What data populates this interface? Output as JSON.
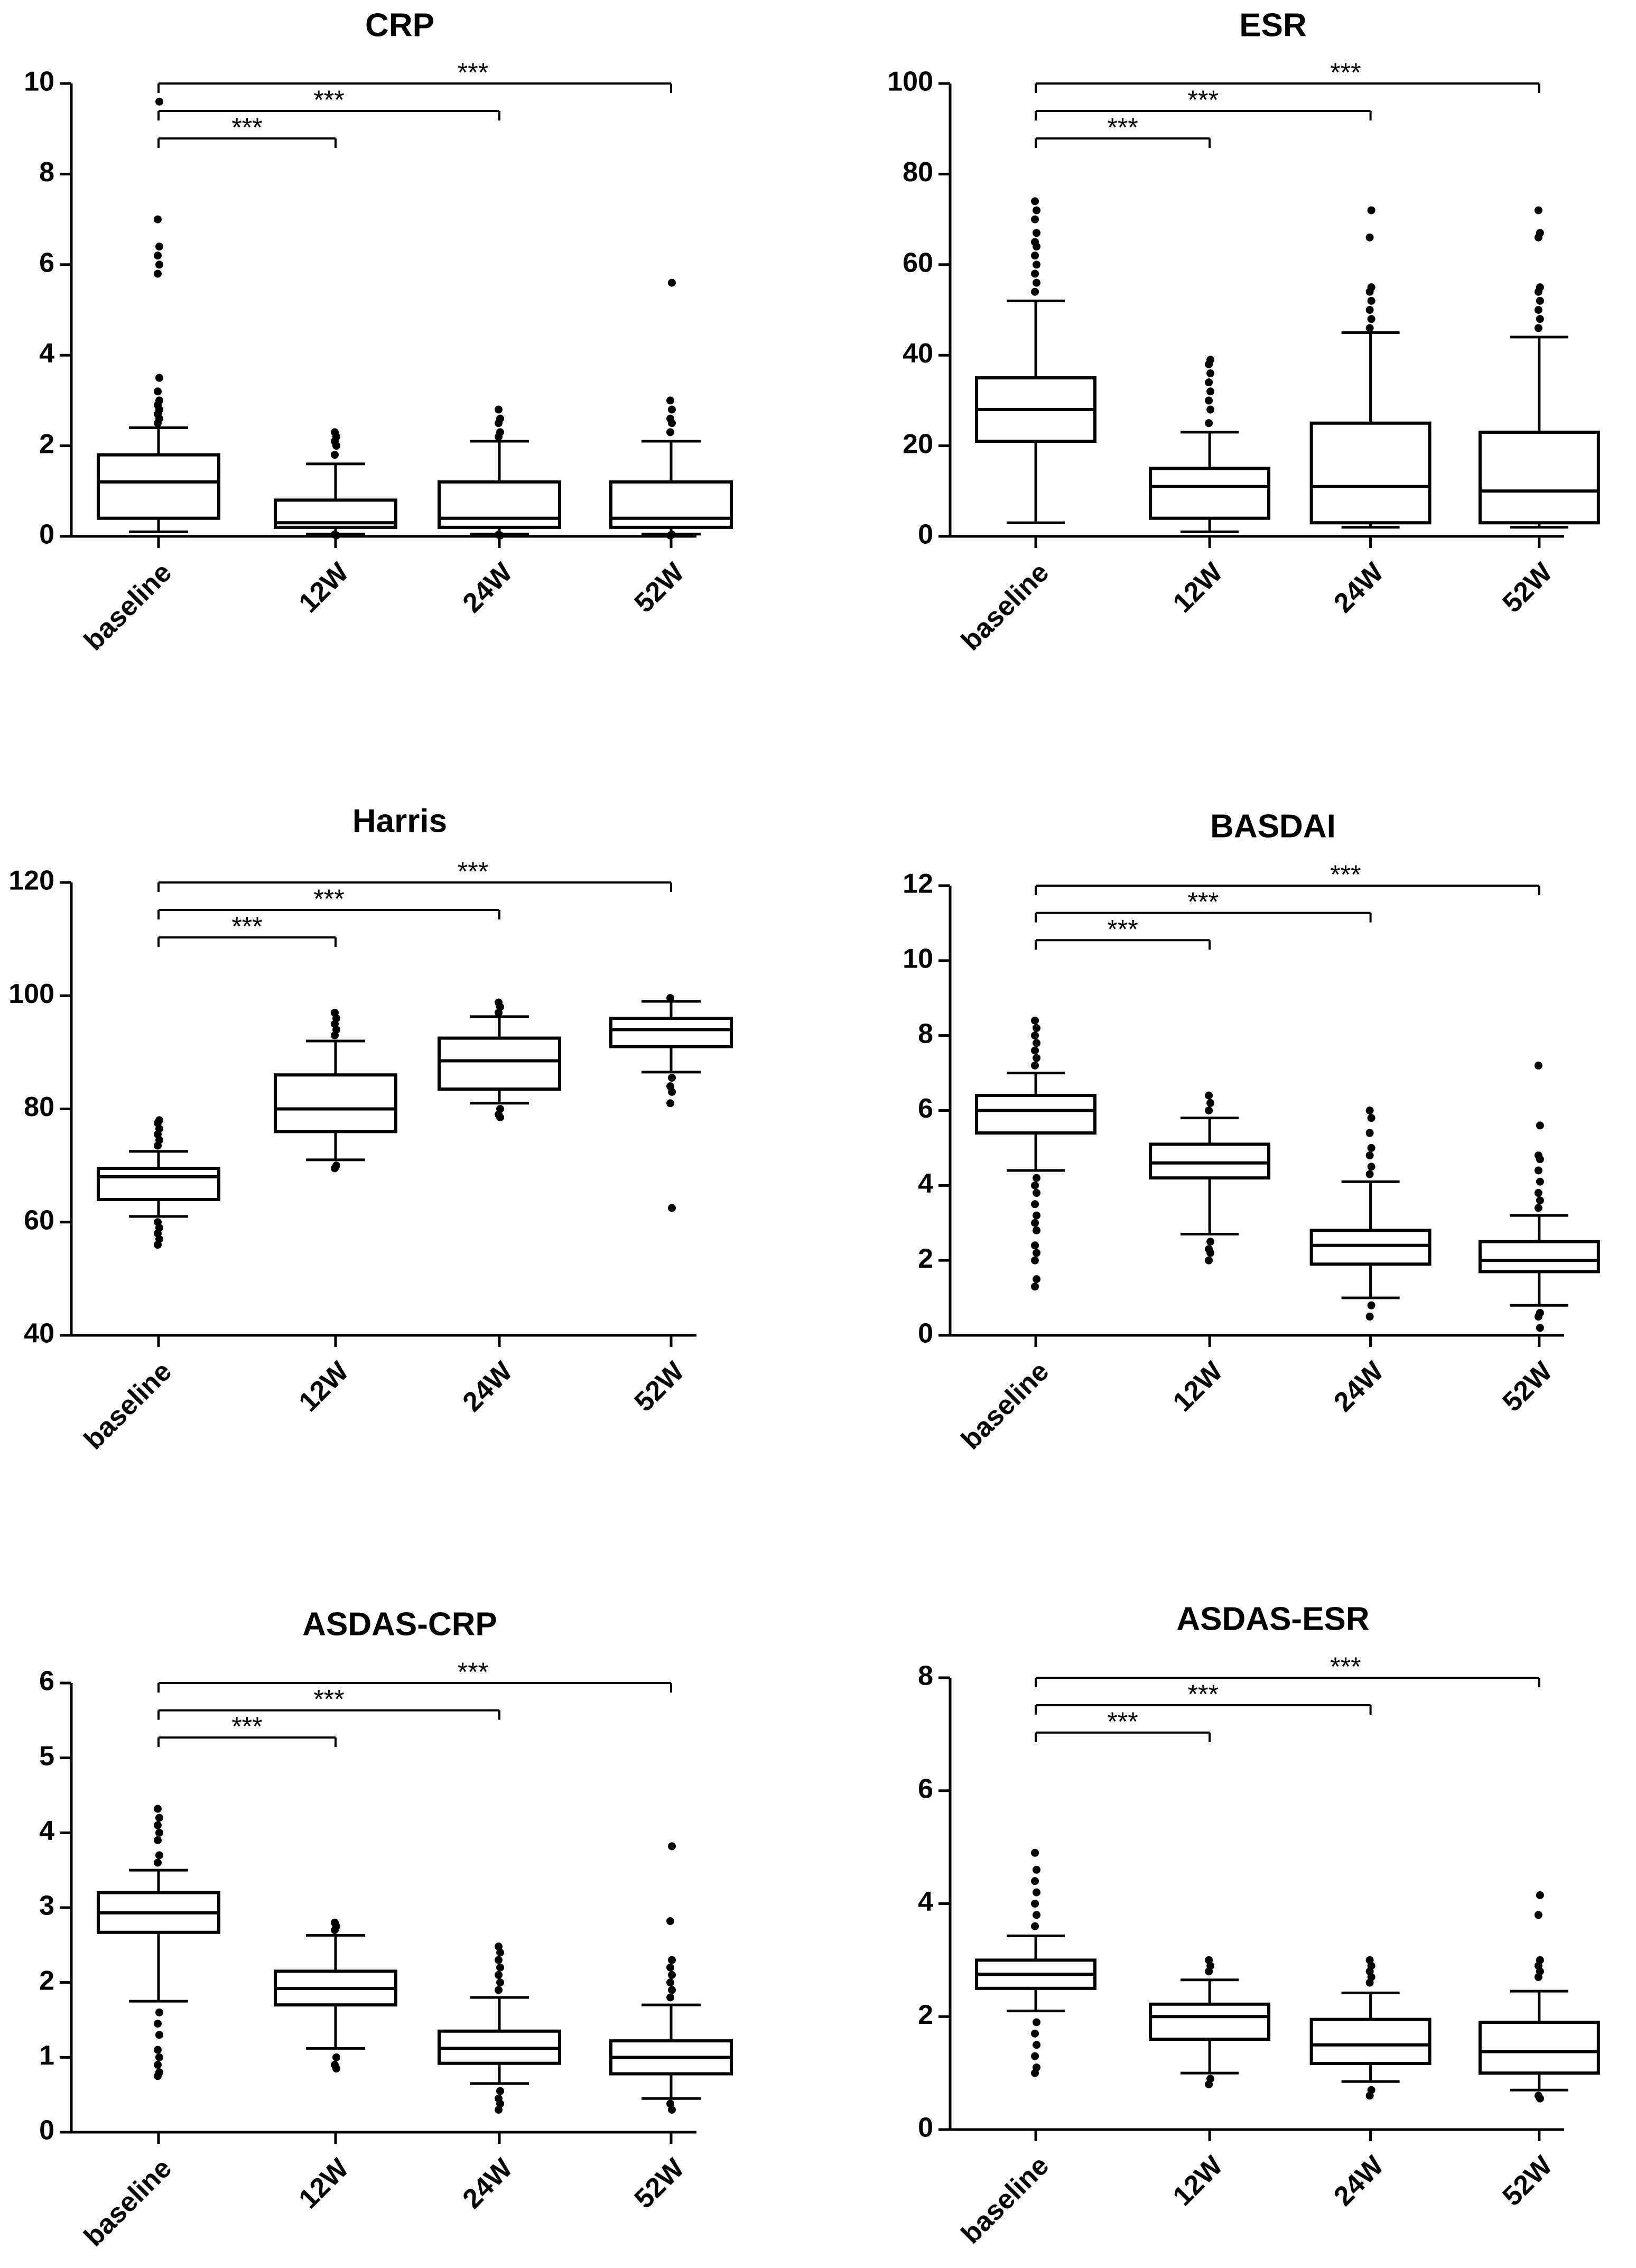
{
  "colors": {
    "stroke": "#000000",
    "background": "#ffffff"
  },
  "chart_data": [
    {
      "type": "box",
      "title": "CRP",
      "categories": [
        "baseline",
        "12W",
        "24W",
        "52W"
      ],
      "ylim": [
        0,
        10
      ],
      "yticks": [
        0,
        2,
        4,
        6,
        8,
        10
      ],
      "significance": [
        {
          "from": "baseline",
          "to": "12W",
          "label": "***"
        },
        {
          "from": "baseline",
          "to": "24W",
          "label": "***"
        },
        {
          "from": "baseline",
          "to": "52W",
          "label": "***"
        }
      ],
      "boxes": [
        {
          "category": "baseline",
          "whisker_low": 0.1,
          "q1": 0.4,
          "median": 1.2,
          "q3": 1.8,
          "whisker_high": 2.4,
          "outliers": [
            2.5,
            2.6,
            2.7,
            2.8,
            2.9,
            3.0,
            3.2,
            3.5,
            5.8,
            6.0,
            6.2,
            6.4,
            7.0,
            9.6
          ]
        },
        {
          "category": "12W",
          "whisker_low": 0.05,
          "q1": 0.2,
          "median": 0.3,
          "q3": 0.8,
          "whisker_high": 1.6,
          "outliers": [
            1.8,
            2.0,
            2.1,
            2.2,
            2.3,
            0.02,
            0.04
          ]
        },
        {
          "category": "24W",
          "whisker_low": 0.05,
          "q1": 0.2,
          "median": 0.4,
          "q3": 1.2,
          "whisker_high": 2.1,
          "outliers": [
            2.2,
            2.3,
            2.5,
            2.6,
            2.8,
            0.02,
            0.04
          ]
        },
        {
          "category": "52W",
          "whisker_low": 0.05,
          "q1": 0.2,
          "median": 0.4,
          "q3": 1.2,
          "whisker_high": 2.1,
          "outliers": [
            2.3,
            2.5,
            2.6,
            2.8,
            3.0,
            5.6,
            0.02,
            0.04
          ]
        }
      ]
    },
    {
      "type": "box",
      "title": "ESR",
      "categories": [
        "baseline",
        "12W",
        "24W",
        "52W"
      ],
      "ylim": [
        0,
        100
      ],
      "yticks": [
        0,
        20,
        40,
        60,
        80,
        100
      ],
      "significance": [
        {
          "from": "baseline",
          "to": "12W",
          "label": "***"
        },
        {
          "from": "baseline",
          "to": "24W",
          "label": "***"
        },
        {
          "from": "baseline",
          "to": "52W",
          "label": "***"
        }
      ],
      "boxes": [
        {
          "category": "baseline",
          "whisker_low": 3,
          "q1": 21,
          "median": 28,
          "q3": 35,
          "whisker_high": 52,
          "outliers": [
            54,
            56,
            58,
            60,
            62,
            64,
            65,
            67,
            70,
            72,
            74
          ]
        },
        {
          "category": "12W",
          "whisker_low": 1,
          "q1": 4,
          "median": 11,
          "q3": 15,
          "whisker_high": 23,
          "outliers": [
            25,
            28,
            30,
            32,
            34,
            36,
            38,
            39
          ]
        },
        {
          "category": "24W",
          "whisker_low": 2,
          "q1": 3,
          "median": 11,
          "q3": 25,
          "whisker_high": 45,
          "outliers": [
            46,
            48,
            50,
            52,
            54,
            55,
            66,
            72
          ]
        },
        {
          "category": "52W",
          "whisker_low": 2,
          "q1": 3,
          "median": 10,
          "q3": 23,
          "whisker_high": 44,
          "outliers": [
            46,
            48,
            50,
            52,
            54,
            55,
            66,
            67,
            72
          ]
        }
      ]
    },
    {
      "type": "box",
      "title": "Harris",
      "categories": [
        "baseline",
        "12W",
        "24W",
        "52W"
      ],
      "ylim": [
        40,
        120
      ],
      "yticks": [
        40,
        60,
        80,
        100,
        120
      ],
      "significance": [
        {
          "from": "baseline",
          "to": "12W",
          "label": "***"
        },
        {
          "from": "baseline",
          "to": "24W",
          "label": "***"
        },
        {
          "from": "baseline",
          "to": "52W",
          "label": "***"
        }
      ],
      "boxes": [
        {
          "category": "baseline",
          "whisker_low": 61,
          "q1": 64,
          "median": 68,
          "q3": 69.5,
          "whisker_high": 72.5,
          "outliers": [
            73.5,
            74.5,
            75.5,
            76.5,
            77.5,
            78,
            60,
            59,
            58,
            57,
            56
          ]
        },
        {
          "category": "12W",
          "whisker_low": 71,
          "q1": 76,
          "median": 80,
          "q3": 86,
          "whisker_high": 92,
          "outliers": [
            93,
            94,
            95,
            96,
            97,
            70,
            69.5
          ]
        },
        {
          "category": "24W",
          "whisker_low": 81,
          "q1": 83.5,
          "median": 88.5,
          "q3": 92.5,
          "whisker_high": 96.3,
          "outliers": [
            97,
            98,
            98.8,
            80,
            79,
            78.5
          ]
        },
        {
          "category": "52W",
          "whisker_low": 86.5,
          "q1": 91,
          "median": 94,
          "q3": 96,
          "whisker_high": 99,
          "outliers": [
            99.6,
            85.5,
            84,
            83,
            81,
            62.5
          ]
        }
      ]
    },
    {
      "type": "box",
      "title": "BASDAI",
      "categories": [
        "baseline",
        "12W",
        "24W",
        "52W"
      ],
      "ylim": [
        0,
        12
      ],
      "yticks": [
        0,
        2,
        4,
        6,
        8,
        10,
        12
      ],
      "significance": [
        {
          "from": "baseline",
          "to": "12W",
          "label": "***"
        },
        {
          "from": "baseline",
          "to": "24W",
          "label": "***"
        },
        {
          "from": "baseline",
          "to": "52W",
          "label": "***"
        }
      ],
      "boxes": [
        {
          "category": "baseline",
          "whisker_low": 4.4,
          "q1": 5.4,
          "median": 6.0,
          "q3": 6.4,
          "whisker_high": 7.0,
          "outliers": [
            7.2,
            7.4,
            7.6,
            7.8,
            8.0,
            8.2,
            8.4,
            4.2,
            4.0,
            3.8,
            3.5,
            3.2,
            3.0,
            2.8,
            2.4,
            2.2,
            2.0,
            1.5,
            1.3
          ]
        },
        {
          "category": "12W",
          "whisker_low": 2.7,
          "q1": 4.2,
          "median": 4.6,
          "q3": 5.1,
          "whisker_high": 5.8,
          "outliers": [
            6.0,
            6.2,
            6.4,
            2.5,
            2.3,
            2.2,
            2.0
          ]
        },
        {
          "category": "24W",
          "whisker_low": 1.0,
          "q1": 1.9,
          "median": 2.4,
          "q3": 2.8,
          "whisker_high": 4.1,
          "outliers": [
            4.3,
            4.5,
            4.8,
            5.0,
            5.4,
            5.8,
            6.0,
            0.8,
            0.5
          ]
        },
        {
          "category": "52W",
          "whisker_low": 0.8,
          "q1": 1.7,
          "median": 2.0,
          "q3": 2.5,
          "whisker_high": 3.2,
          "outliers": [
            3.4,
            3.6,
            3.8,
            4.1,
            4.4,
            4.7,
            4.8,
            5.6,
            7.2,
            0.6,
            0.5,
            0.2
          ]
        }
      ]
    },
    {
      "type": "box",
      "title": "ASDAS-CRP",
      "categories": [
        "baseline",
        "12W",
        "24W",
        "52W"
      ],
      "ylim": [
        0,
        6
      ],
      "yticks": [
        0,
        1,
        2,
        3,
        4,
        5,
        6
      ],
      "significance": [
        {
          "from": "baseline",
          "to": "12W",
          "label": "***"
        },
        {
          "from": "baseline",
          "to": "24W",
          "label": "***"
        },
        {
          "from": "baseline",
          "to": "52W",
          "label": "***"
        }
      ],
      "boxes": [
        {
          "category": "baseline",
          "whisker_low": 1.75,
          "q1": 2.67,
          "median": 2.93,
          "q3": 3.2,
          "whisker_high": 3.5,
          "outliers": [
            3.6,
            3.7,
            3.9,
            4.0,
            4.1,
            4.2,
            4.32,
            1.6,
            1.45,
            1.3,
            1.1,
            1.0,
            0.9,
            0.8,
            0.75
          ]
        },
        {
          "category": "12W",
          "whisker_low": 1.12,
          "q1": 1.7,
          "median": 1.92,
          "q3": 2.15,
          "whisker_high": 2.63,
          "outliers": [
            2.7,
            2.75,
            2.8,
            1.0,
            0.9,
            0.85
          ]
        },
        {
          "category": "24W",
          "whisker_low": 0.65,
          "q1": 0.92,
          "median": 1.12,
          "q3": 1.35,
          "whisker_high": 1.8,
          "outliers": [
            1.9,
            2.0,
            2.1,
            2.2,
            2.3,
            2.4,
            2.48,
            0.55,
            0.45,
            0.38,
            0.3
          ]
        },
        {
          "category": "52W",
          "whisker_low": 0.45,
          "q1": 0.78,
          "median": 1.0,
          "q3": 1.22,
          "whisker_high": 1.7,
          "outliers": [
            1.8,
            1.9,
            2.0,
            2.1,
            2.2,
            2.3,
            2.82,
            3.82,
            0.38,
            0.3
          ]
        }
      ]
    },
    {
      "type": "box",
      "title": "ASDAS-ESR",
      "categories": [
        "baseline",
        "12W",
        "24W",
        "52W"
      ],
      "ylim": [
        0,
        8
      ],
      "yticks": [
        0,
        2,
        4,
        6,
        8
      ],
      "significance": [
        {
          "from": "baseline",
          "to": "12W",
          "label": "***"
        },
        {
          "from": "baseline",
          "to": "24W",
          "label": "***"
        },
        {
          "from": "baseline",
          "to": "52W",
          "label": "***"
        }
      ],
      "boxes": [
        {
          "category": "baseline",
          "whisker_low": 2.1,
          "q1": 2.5,
          "median": 2.75,
          "q3": 3.0,
          "whisker_high": 3.43,
          "outliers": [
            3.6,
            3.8,
            4.0,
            4.2,
            4.4,
            4.6,
            4.9,
            1.9,
            1.7,
            1.5,
            1.3,
            1.1,
            1.0
          ]
        },
        {
          "category": "12W",
          "whisker_low": 1.0,
          "q1": 1.6,
          "median": 2.0,
          "q3": 2.22,
          "whisker_high": 2.65,
          "outliers": [
            2.8,
            2.9,
            3.0,
            0.9,
            0.8
          ]
        },
        {
          "category": "24W",
          "whisker_low": 0.85,
          "q1": 1.17,
          "median": 1.5,
          "q3": 1.95,
          "whisker_high": 2.42,
          "outliers": [
            2.6,
            2.7,
            2.8,
            2.9,
            3.0,
            0.7,
            0.6
          ]
        },
        {
          "category": "52W",
          "whisker_low": 0.7,
          "q1": 1.0,
          "median": 1.38,
          "q3": 1.9,
          "whisker_high": 2.45,
          "outliers": [
            2.7,
            2.8,
            2.9,
            3.0,
            3.8,
            4.15,
            0.6,
            0.55
          ]
        }
      ]
    }
  ]
}
